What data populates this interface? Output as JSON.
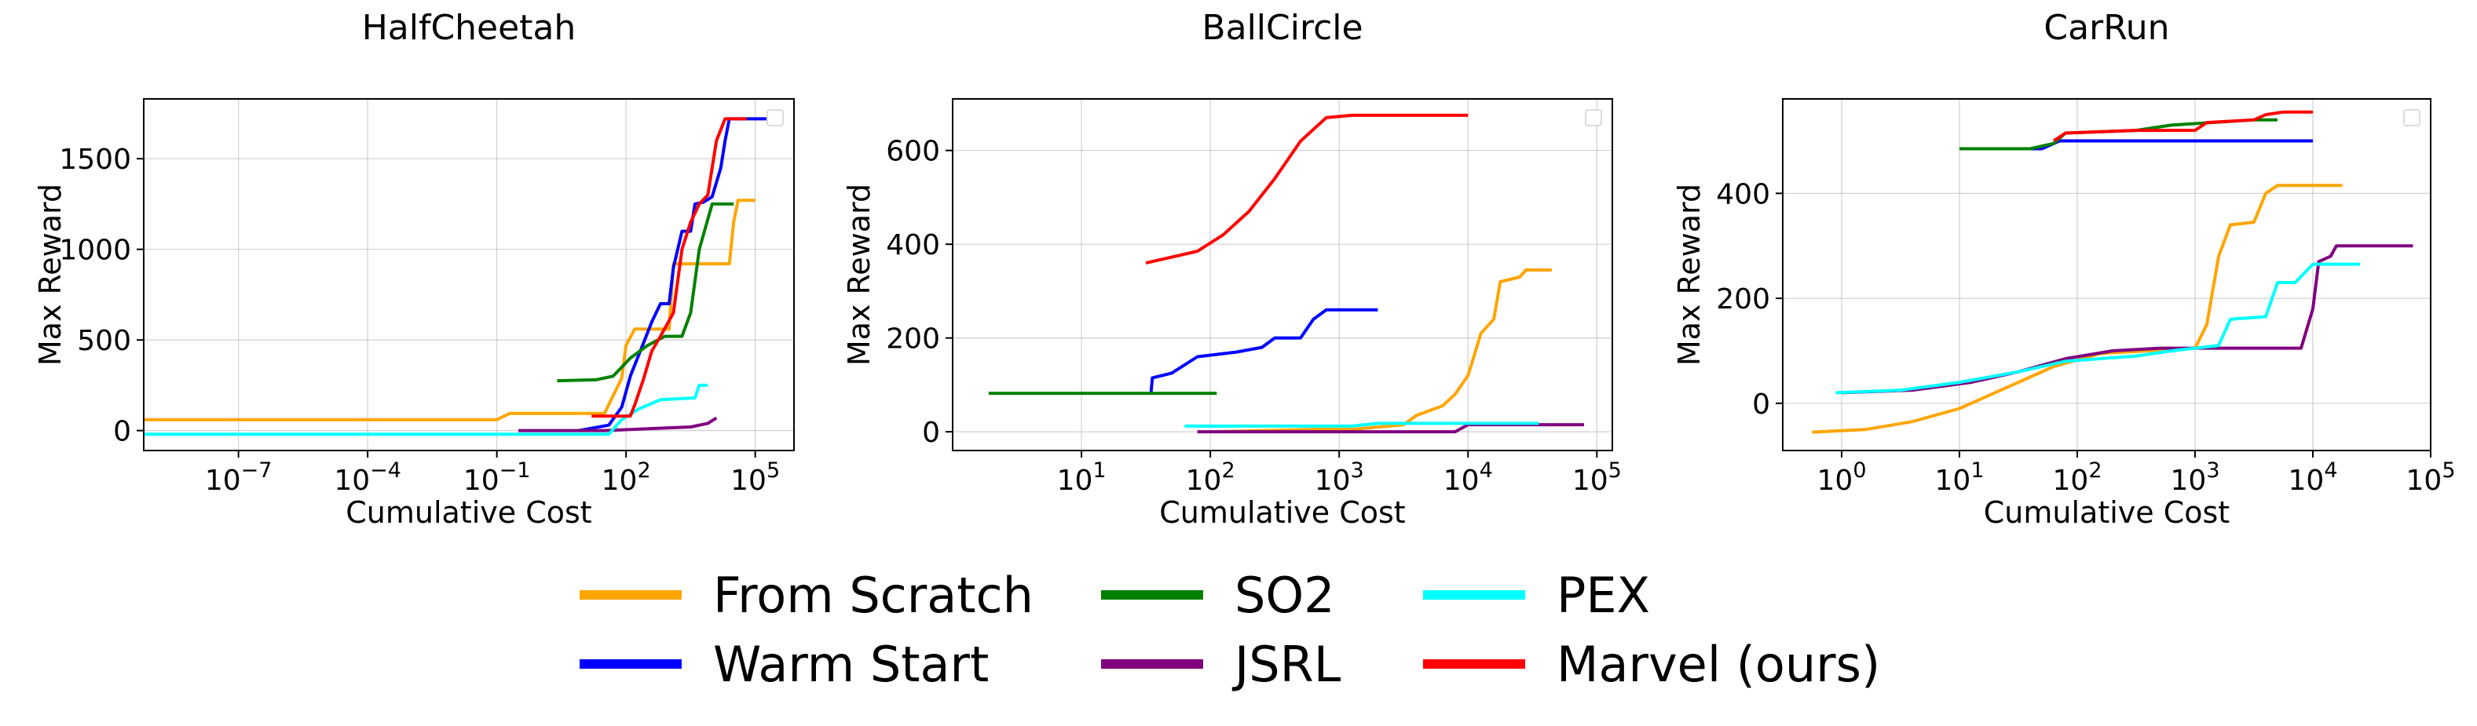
{
  "legend": [
    {
      "name": "From Scratch",
      "color": "#FFA500"
    },
    {
      "name": "SO2",
      "color": "#008000"
    },
    {
      "name": "PEX",
      "color": "#00FFFF"
    },
    {
      "name": "Warm Start",
      "color": "#0000FF"
    },
    {
      "name": "JSRL",
      "color": "#800080"
    },
    {
      "name": "Marvel (ours)",
      "color": "#FF0000"
    }
  ],
  "chart_data": [
    {
      "type": "line",
      "title": "HalfCheetah",
      "xlabel": "Cumulative Cost",
      "ylabel": "Max Reward",
      "xscale": "log",
      "xlim_log10": [
        -9.2,
        5.9
      ],
      "ylim": [
        -110,
        1830
      ],
      "grid": true,
      "xticks": [
        {
          "label": "10",
          "exp": "−7",
          "value_log10": -7
        },
        {
          "label": "10",
          "exp": "−4",
          "value_log10": -4
        },
        {
          "label": "10",
          "exp": "−1",
          "value_log10": -1
        },
        {
          "label": "10",
          "exp": "2",
          "value_log10": 2
        },
        {
          "label": "10",
          "exp": "5",
          "value_log10": 5
        }
      ],
      "yticks": [
        {
          "label": "0",
          "value": 0
        },
        {
          "label": "500",
          "value": 500
        },
        {
          "label": "1000",
          "value": 1000
        },
        {
          "label": "1500",
          "value": 1500
        }
      ],
      "series": [
        {
          "name": "From Scratch",
          "color": "#FFA500",
          "points": [
            [
              -9.2,
              60
            ],
            [
              -1.0,
              60
            ],
            [
              -0.7,
              95
            ],
            [
              1.5,
              95
            ],
            [
              1.9,
              290
            ],
            [
              2.0,
              470
            ],
            [
              2.2,
              560
            ],
            [
              3.0,
              560
            ],
            [
              3.1,
              920
            ],
            [
              4.4,
              920
            ],
            [
              4.5,
              1150
            ],
            [
              4.6,
              1270
            ],
            [
              5.0,
              1270
            ]
          ]
        },
        {
          "name": "Warm Start",
          "color": "#0000FF",
          "points": [
            [
              0.9,
              0
            ],
            [
              1.6,
              30
            ],
            [
              1.9,
              130
            ],
            [
              2.1,
              300
            ],
            [
              2.4,
              480
            ],
            [
              2.6,
              600
            ],
            [
              2.8,
              700
            ],
            [
              3.0,
              700
            ],
            [
              3.1,
              900
            ],
            [
              3.3,
              1100
            ],
            [
              3.5,
              1100
            ],
            [
              3.6,
              1250
            ],
            [
              3.8,
              1260
            ],
            [
              4.0,
              1290
            ],
            [
              4.2,
              1450
            ],
            [
              4.3,
              1600
            ],
            [
              4.4,
              1720
            ],
            [
              5.4,
              1720
            ]
          ]
        },
        {
          "name": "SO2",
          "color": "#008000",
          "points": [
            [
              0.4,
              275
            ],
            [
              1.3,
              280
            ],
            [
              1.7,
              300
            ],
            [
              1.9,
              350
            ],
            [
              2.1,
              400
            ],
            [
              2.5,
              470
            ],
            [
              2.9,
              520
            ],
            [
              3.3,
              520
            ],
            [
              3.5,
              650
            ],
            [
              3.7,
              1000
            ],
            [
              4.0,
              1250
            ],
            [
              4.5,
              1250
            ]
          ]
        },
        {
          "name": "JSRL",
          "color": "#800080",
          "points": [
            [
              -0.5,
              0
            ],
            [
              1.5,
              0
            ],
            [
              2.5,
              10
            ],
            [
              3.5,
              20
            ],
            [
              3.9,
              40
            ],
            [
              4.1,
              70
            ]
          ]
        },
        {
          "name": "PEX",
          "color": "#00FFFF",
          "points": [
            [
              -9.2,
              -20
            ],
            [
              1.6,
              -20
            ],
            [
              1.9,
              60
            ],
            [
              2.3,
              120
            ],
            [
              2.8,
              170
            ],
            [
              3.6,
              180
            ],
            [
              3.7,
              250
            ],
            [
              3.9,
              250
            ]
          ]
        },
        {
          "name": "Marvel (ours)",
          "color": "#FF0000",
          "points": [
            [
              1.2,
              80
            ],
            [
              2.1,
              80
            ],
            [
              2.2,
              140
            ],
            [
              2.4,
              280
            ],
            [
              2.6,
              440
            ],
            [
              2.8,
              520
            ],
            [
              3.1,
              650
            ],
            [
              3.3,
              1000
            ],
            [
              3.5,
              1150
            ],
            [
              3.7,
              1250
            ],
            [
              3.9,
              1300
            ],
            [
              4.1,
              1600
            ],
            [
              4.3,
              1720
            ],
            [
              4.8,
              1720
            ]
          ]
        }
      ]
    },
    {
      "type": "line",
      "title": "BallCircle",
      "xlabel": "Cumulative Cost",
      "ylabel": "Max Reward",
      "xscale": "log",
      "xlim_log10": [
        0.0,
        5.12
      ],
      "ylim": [
        -40,
        710
      ],
      "grid": true,
      "xticks": [
        {
          "label": "10",
          "exp": "1",
          "value_log10": 1
        },
        {
          "label": "10",
          "exp": "2",
          "value_log10": 2
        },
        {
          "label": "10",
          "exp": "3",
          "value_log10": 3
        },
        {
          "label": "10",
          "exp": "4",
          "value_log10": 4
        },
        {
          "label": "10",
          "exp": "5",
          "value_log10": 5
        }
      ],
      "yticks": [
        {
          "label": "0",
          "value": 0
        },
        {
          "label": "200",
          "value": 200
        },
        {
          "label": "400",
          "value": 400
        },
        {
          "label": "600",
          "value": 600
        }
      ],
      "series": [
        {
          "name": "From Scratch",
          "color": "#FFA500",
          "points": [
            [
              2.0,
              0
            ],
            [
              2.8,
              5
            ],
            [
              3.1,
              5
            ],
            [
              3.5,
              15
            ],
            [
              3.6,
              35
            ],
            [
              3.8,
              55
            ],
            [
              3.9,
              80
            ],
            [
              4.0,
              120
            ],
            [
              4.1,
              210
            ],
            [
              4.2,
              240
            ],
            [
              4.25,
              320
            ],
            [
              4.4,
              330
            ],
            [
              4.45,
              345
            ],
            [
              4.65,
              345
            ]
          ]
        },
        {
          "name": "Warm Start",
          "color": "#0000FF",
          "points": [
            [
              1.54,
              85
            ],
            [
              1.55,
              115
            ],
            [
              1.7,
              125
            ],
            [
              1.9,
              160
            ],
            [
              2.2,
              170
            ],
            [
              2.4,
              180
            ],
            [
              2.5,
              200
            ],
            [
              2.7,
              200
            ],
            [
              2.8,
              240
            ],
            [
              2.9,
              260
            ],
            [
              3.3,
              260
            ]
          ]
        },
        {
          "name": "SO2",
          "color": "#008000",
          "points": [
            [
              0.28,
              82
            ],
            [
              2.05,
              82
            ]
          ]
        },
        {
          "name": "JSRL",
          "color": "#800080",
          "points": [
            [
              1.9,
              0
            ],
            [
              3.9,
              0
            ],
            [
              4.0,
              15
            ],
            [
              4.9,
              15
            ]
          ]
        },
        {
          "name": "PEX",
          "color": "#00FFFF",
          "points": [
            [
              1.8,
              12
            ],
            [
              3.1,
              12
            ],
            [
              3.3,
              18
            ],
            [
              4.55,
              18
            ]
          ]
        },
        {
          "name": "Marvel (ours)",
          "color": "#FF0000",
          "points": [
            [
              1.5,
              360
            ],
            [
              1.9,
              385
            ],
            [
              2.1,
              420
            ],
            [
              2.3,
              470
            ],
            [
              2.5,
              540
            ],
            [
              2.7,
              620
            ],
            [
              2.9,
              670
            ],
            [
              3.1,
              675
            ],
            [
              4.0,
              675
            ]
          ]
        }
      ]
    },
    {
      "type": "line",
      "title": "CarRun",
      "xlabel": "Cumulative Cost",
      "ylabel": "Max Reward",
      "xscale": "log",
      "xlim_log10": [
        -0.5,
        5.0
      ],
      "ylim": [
        -90,
        580
      ],
      "grid": true,
      "xticks": [
        {
          "label": "10",
          "exp": "0",
          "value_log10": 0
        },
        {
          "label": "10",
          "exp": "1",
          "value_log10": 1
        },
        {
          "label": "10",
          "exp": "2",
          "value_log10": 2
        },
        {
          "label": "10",
          "exp": "3",
          "value_log10": 3
        },
        {
          "label": "10",
          "exp": "4",
          "value_log10": 4
        },
        {
          "label": "10",
          "exp": "5",
          "value_log10": 5
        }
      ],
      "yticks": [
        {
          "label": "0",
          "value": 0
        },
        {
          "label": "200",
          "value": 200
        },
        {
          "label": "400",
          "value": 400
        }
      ],
      "series": [
        {
          "name": "From Scratch",
          "color": "#FFA500",
          "points": [
            [
              -0.25,
              -55
            ],
            [
              0.2,
              -50
            ],
            [
              0.6,
              -35
            ],
            [
              1.0,
              -10
            ],
            [
              1.4,
              30
            ],
            [
              1.8,
              70
            ],
            [
              2.2,
              95
            ],
            [
              2.6,
              100
            ],
            [
              3.0,
              105
            ],
            [
              3.1,
              150
            ],
            [
              3.2,
              280
            ],
            [
              3.3,
              340
            ],
            [
              3.5,
              345
            ],
            [
              3.6,
              400
            ],
            [
              3.7,
              415
            ],
            [
              4.25,
              415
            ]
          ]
        },
        {
          "name": "Warm Start",
          "color": "#0000FF",
          "points": [
            [
              1.0,
              485
            ],
            [
              1.7,
              485
            ],
            [
              1.85,
              500
            ],
            [
              4.0,
              500
            ]
          ]
        },
        {
          "name": "SO2",
          "color": "#008000",
          "points": [
            [
              1.0,
              485
            ],
            [
              1.6,
              485
            ],
            [
              1.8,
              495
            ],
            [
              1.9,
              515
            ],
            [
              2.5,
              520
            ],
            [
              2.8,
              530
            ],
            [
              3.5,
              540
            ],
            [
              3.7,
              540
            ]
          ]
        },
        {
          "name": "JSRL",
          "color": "#800080",
          "points": [
            [
              0.0,
              20
            ],
            [
              0.6,
              25
            ],
            [
              1.1,
              40
            ],
            [
              1.5,
              60
            ],
            [
              1.9,
              85
            ],
            [
              2.3,
              100
            ],
            [
              2.7,
              105
            ],
            [
              3.9,
              105
            ],
            [
              4.0,
              180
            ],
            [
              4.05,
              270
            ],
            [
              4.15,
              280
            ],
            [
              4.2,
              300
            ],
            [
              4.85,
              300
            ]
          ]
        },
        {
          "name": "PEX",
          "color": "#00FFFF",
          "points": [
            [
              -0.05,
              20
            ],
            [
              0.5,
              25
            ],
            [
              1.0,
              40
            ],
            [
              1.5,
              60
            ],
            [
              1.9,
              80
            ],
            [
              2.5,
              90
            ],
            [
              2.8,
              100
            ],
            [
              3.2,
              110
            ],
            [
              3.3,
              160
            ],
            [
              3.6,
              165
            ],
            [
              3.7,
              230
            ],
            [
              3.85,
              230
            ],
            [
              4.0,
              265
            ],
            [
              4.4,
              265
            ]
          ]
        },
        {
          "name": "Marvel (ours)",
          "color": "#FF0000",
          "points": [
            [
              1.8,
              500
            ],
            [
              1.9,
              515
            ],
            [
              2.5,
              520
            ],
            [
              3.0,
              520
            ],
            [
              3.1,
              535
            ],
            [
              3.5,
              540
            ],
            [
              3.6,
              550
            ],
            [
              3.75,
              555
            ],
            [
              4.0,
              555
            ]
          ]
        }
      ]
    }
  ]
}
